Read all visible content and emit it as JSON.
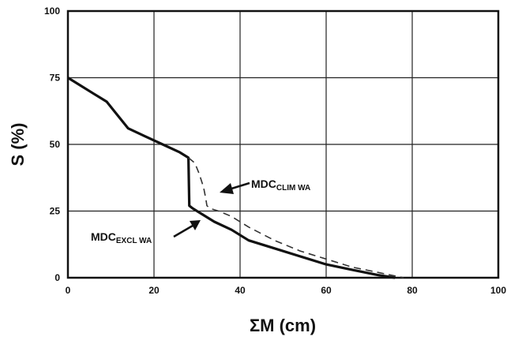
{
  "chart_data": {
    "type": "line",
    "title": "",
    "xlabel": "ΣM (cm)",
    "ylabel": "S (%)",
    "xlim": [
      0,
      100
    ],
    "ylim": [
      0,
      100
    ],
    "xticks": [
      "0",
      "20",
      "40",
      "60",
      "80",
      "100"
    ],
    "yticks": [
      "0",
      "25",
      "50",
      "75",
      "100"
    ],
    "grid": true,
    "legend": "none",
    "series": [
      {
        "style": "solid",
        "color": "#111111",
        "x": [
          0,
          3,
          6,
          9,
          11,
          14,
          18,
          22,
          26,
          28,
          28.2,
          29,
          31,
          34,
          38,
          42,
          48,
          54,
          60,
          66,
          72,
          76
        ],
        "y": [
          75,
          72,
          69,
          66,
          62,
          56,
          53,
          50,
          47,
          45,
          27,
          26,
          24,
          21,
          18,
          14,
          11,
          8,
          5,
          3,
          1,
          0
        ]
      },
      {
        "style": "dashed",
        "color": "#333333",
        "x": [
          28,
          29.5,
          30.5,
          31.5,
          32,
          32.3,
          33,
          35,
          38,
          42,
          48,
          54,
          60,
          66,
          72,
          78
        ],
        "y": [
          45,
          43,
          39,
          34,
          30,
          27,
          26,
          25,
          23,
          19,
          14,
          10,
          7,
          4,
          2,
          0
        ]
      }
    ],
    "annotations": [
      {
        "main": "MDC",
        "sub": "CLIM WA"
      },
      {
        "main": "MDC",
        "sub": "EXCL WA"
      }
    ]
  }
}
